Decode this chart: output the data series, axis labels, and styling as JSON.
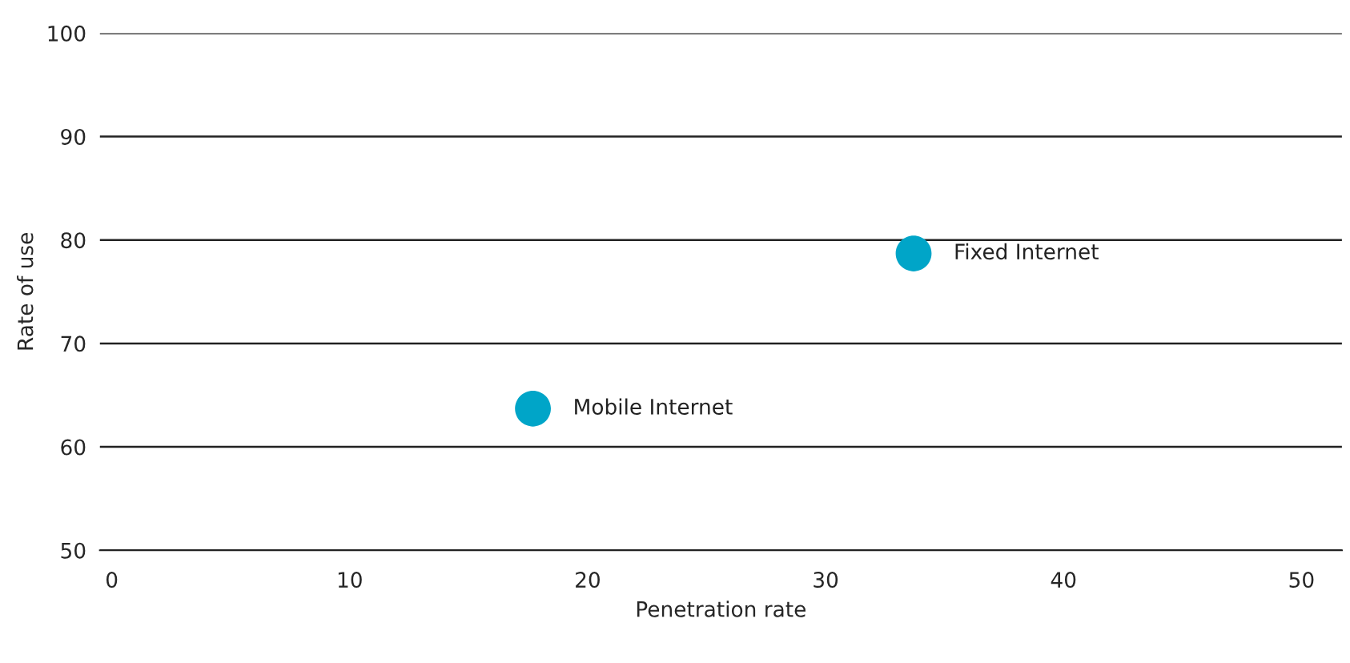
{
  "chart_data": {
    "type": "scatter",
    "xlabel": "Penetration rate",
    "ylabel": "Rate of use",
    "series": [
      {
        "name": "Mobile Internet",
        "color": "#00a5c8",
        "x": [
          17.7
        ],
        "values": [
          63.7
        ]
      },
      {
        "name": "Fixed Internet",
        "color": "#00a5c8",
        "x": [
          33.7
        ],
        "values": [
          78.7
        ]
      }
    ],
    "xlim": [
      -0.5,
      51.7
    ],
    "xticks": [
      0,
      10,
      20,
      30,
      40,
      50
    ],
    "ylim": [
      50,
      100
    ],
    "yticks": [
      50,
      60,
      70,
      80,
      90,
      100
    ],
    "grid": "y",
    "marker": "circle",
    "legend": false
  }
}
